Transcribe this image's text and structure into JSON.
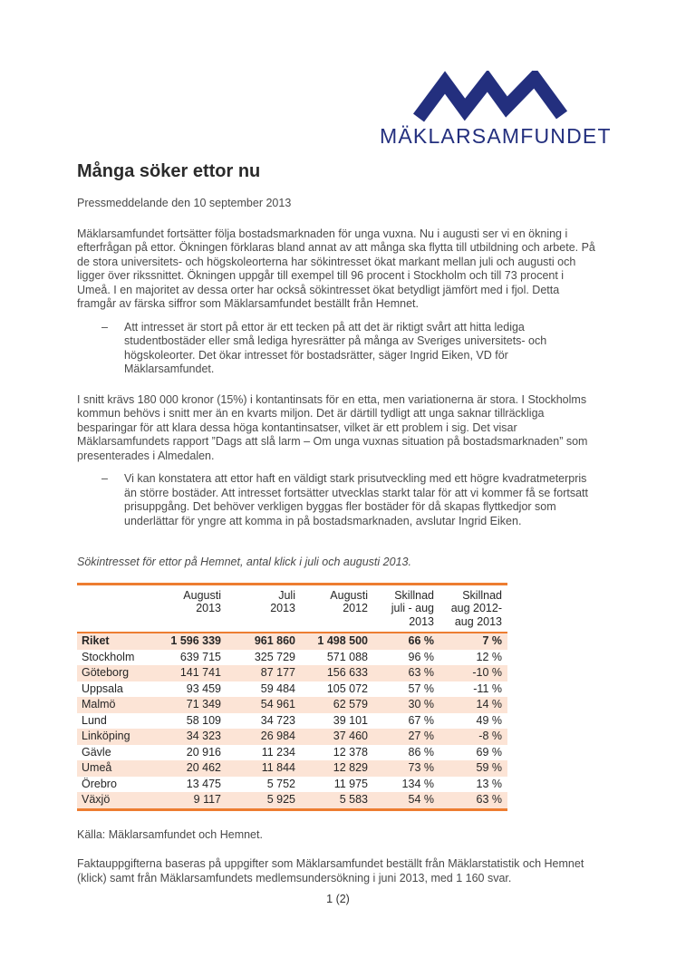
{
  "logo": {
    "wordmark": "MÄKLARSAMFUNDET",
    "brand_color": "#232f7e",
    "mark_icon": "mountain-m-icon"
  },
  "header": {
    "title": "Många söker ettor nu",
    "dateline": "Pressmeddelande den 10 september 2013"
  },
  "body": {
    "paragraph_1": "Mäklarsamfundet fortsätter följa bostadsmarknaden för unga vuxna. Nu i augusti ser vi en ökning i efterfrågan på ettor. Ökningen förklaras bland annat av att många ska flytta till utbildning och arbete. På de stora universitets- och högskoleorterna har sökintresset ökat markant mellan juli och augusti och ligger över rikssnittet. Ökningen uppgår till exempel till 96 procent i Stockholm och till 73 procent i Umeå. I en majoritet av dessa orter har också sökintresset ökat betydligt jämfört med i fjol. Detta framgår av färska siffror som Mäklarsamfundet beställt från Hemnet.",
    "quote_dash": "–",
    "quote_1": "Att intresset är stort på ettor är ett tecken på att det är riktigt svårt att hitta lediga studentbostäder eller små lediga hyresrätter på många av Sveriges universitets- och högskoleorter. Det ökar intresset för bostadsrätter, säger Ingrid Eiken, VD för Mäklarsamfundet.",
    "paragraph_2": "I snitt krävs 180 000 kronor (15%) i kontantinsats för en etta, men variationerna är stora. I Stockholms kommun behövs i snitt mer än en kvarts miljon. Det är därtill tydligt att unga saknar tillräckliga besparingar för att klara dessa höga kontantinsatser, vilket är ett problem i sig. Det visar Mäklarsamfundets rapport ”Dags att slå larm – Om unga vuxnas situation på bostadsmarknaden” som presenterades i Almedalen.",
    "quote_2": "Vi kan konstatera att ettor haft en väldigt stark prisutveckling med ett högre kvadratmeterpris än större bostäder. Att intresset fortsätter utvecklas starkt talar för att vi kommer få se fortsatt prisuppgång. Det behöver verkligen byggas fler bostäder för då skapas flyttkedjor som underlättar för yngre att komma in på bostadsmarknaden, avslutar Ingrid Eiken.",
    "table_caption": "Sökintresset för ettor på Hemnet, antal klick i juli och augusti 2013."
  },
  "table": {
    "accent_color": "#ED7D31",
    "shade_color": "#FCE4D6",
    "columns": [
      {
        "lines": [
          ""
        ]
      },
      {
        "lines": [
          "Augusti",
          "2013"
        ]
      },
      {
        "lines": [
          "Juli",
          "2013"
        ]
      },
      {
        "lines": [
          "Augusti",
          "2012"
        ]
      },
      {
        "lines": [
          "Skillnad",
          "juli - aug",
          "2013"
        ]
      },
      {
        "lines": [
          "Skillnad",
          "aug 2012-",
          "aug 2013"
        ]
      }
    ],
    "rows": [
      {
        "label": "Riket",
        "values": [
          "1 596 339",
          "961 860",
          "1 498 500",
          "66 %",
          "7 %"
        ],
        "bold": true,
        "shaded": true
      },
      {
        "label": "Stockholm",
        "values": [
          "639 715",
          "325 729",
          "571 088",
          "96 %",
          "12 %"
        ],
        "bold": false,
        "shaded": false
      },
      {
        "label": "Göteborg",
        "values": [
          "141 741",
          "87 177",
          "156 633",
          "63 %",
          "-10 %"
        ],
        "bold": false,
        "shaded": true
      },
      {
        "label": "Uppsala",
        "values": [
          "93 459",
          "59 484",
          "105 072",
          "57 %",
          "-11 %"
        ],
        "bold": false,
        "shaded": false
      },
      {
        "label": "Malmö",
        "values": [
          "71 349",
          "54 961",
          "62 579",
          "30 %",
          "14 %"
        ],
        "bold": false,
        "shaded": true
      },
      {
        "label": "Lund",
        "values": [
          "58 109",
          "34 723",
          "39 101",
          "67 %",
          "49 %"
        ],
        "bold": false,
        "shaded": false
      },
      {
        "label": "Linköping",
        "values": [
          "34 323",
          "26 984",
          "37 460",
          "27 %",
          "-8 %"
        ],
        "bold": false,
        "shaded": true
      },
      {
        "label": "Gävle",
        "values": [
          "20 916",
          "11 234",
          "12 378",
          "86 %",
          "69 %"
        ],
        "bold": false,
        "shaded": false
      },
      {
        "label": "Umeå",
        "values": [
          "20 462",
          "11 844",
          "12 829",
          "73 %",
          "59 %"
        ],
        "bold": false,
        "shaded": true
      },
      {
        "label": "Örebro",
        "values": [
          "13 475",
          "5 752",
          "11 975",
          "134 %",
          "13 %"
        ],
        "bold": false,
        "shaded": false
      },
      {
        "label": "Växjö",
        "values": [
          "9 117",
          "5 925",
          "5 583",
          "54 %",
          "63 %"
        ],
        "bold": false,
        "shaded": true
      }
    ]
  },
  "footer": {
    "source": "Källa: Mäklarsamfundet och Hemnet.",
    "note": "Faktauppgifterna baseras på uppgifter som Mäklarsamfundet beställt från Mäklarstatistik och Hemnet (klick) samt från Mäklarsamfundets medlemsundersökning i juni 2013, med 1 160 svar.",
    "page_number": "1 (2)"
  }
}
